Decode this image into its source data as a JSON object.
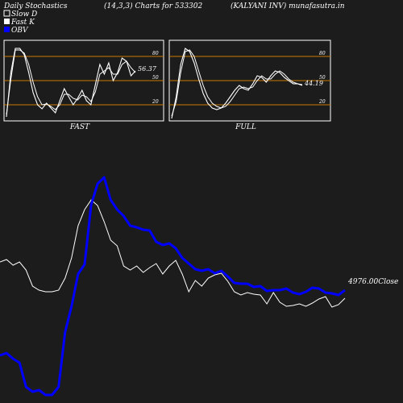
{
  "header": {
    "title_left": "Daily Stochastics",
    "title_mid": "(14,3,3) Charts for 533302",
    "title_right": "(KALYANI INV) munafasutra.in"
  },
  "legend": [
    {
      "label": "Slow  D",
      "color": "#ffffff"
    },
    {
      "label": "Fast K",
      "color": "#ffffff"
    },
    {
      "label": "OBV",
      "color": "#0000ff"
    }
  ],
  "colors": {
    "background": "#1c1c1c",
    "panel_border": "#ffffff",
    "level_line": "#cc7a00",
    "obv": "#0000ff",
    "price": "#ffffff"
  },
  "chart_data": [
    {
      "type": "line",
      "title": "FAST",
      "ylim": [
        0,
        100
      ],
      "levels": [
        20,
        50,
        80
      ],
      "tick_labels": [
        "80",
        "50",
        "20"
      ],
      "value_label": "56.37",
      "series": [
        {
          "name": "Fast K",
          "values": [
            5,
            60,
            90,
            90,
            82,
            60,
            35,
            20,
            15,
            22,
            16,
            10,
            25,
            40,
            30,
            20,
            28,
            38,
            25,
            20,
            45,
            70,
            58,
            72,
            50,
            60,
            78,
            74,
            56,
            62
          ]
        },
        {
          "name": "Slow  D",
          "values": [
            8,
            52,
            88,
            88,
            84,
            70,
            48,
            30,
            20,
            21,
            18,
            14,
            20,
            33,
            33,
            28,
            26,
            32,
            30,
            24,
            36,
            58,
            62,
            66,
            58,
            58,
            70,
            74,
            66,
            60
          ]
        }
      ]
    },
    {
      "type": "line",
      "title": "FULL",
      "ylim": [
        0,
        100
      ],
      "levels": [
        20,
        50,
        80
      ],
      "tick_labels": [
        "80",
        "50",
        "20"
      ],
      "value_label": "44.19",
      "series": [
        {
          "name": "Fast K",
          "values": [
            3,
            30,
            70,
            90,
            86,
            72,
            52,
            34,
            22,
            16,
            14,
            16,
            22,
            30,
            38,
            44,
            40,
            38,
            46,
            56,
            54,
            48,
            56,
            62,
            60,
            54,
            50,
            46,
            46,
            44
          ]
        },
        {
          "name": "Slow  D",
          "values": [
            6,
            24,
            60,
            86,
            88,
            80,
            62,
            44,
            30,
            22,
            18,
            16,
            18,
            24,
            32,
            40,
            42,
            40,
            42,
            50,
            56,
            52,
            52,
            58,
            62,
            58,
            52,
            48,
            46,
            45
          ]
        }
      ]
    },
    {
      "type": "line",
      "title": "",
      "close_label": "4976.00Close",
      "series": [
        {
          "name": "OBV",
          "values": [
            9,
            12,
            5,
            0,
            -30,
            -36,
            -34,
            -40,
            -40,
            -30,
            38,
            70,
            110,
            122,
            196,
            222,
            230,
            202,
            190,
            182,
            170,
            168,
            165,
            164,
            150,
            146,
            148,
            142,
            130,
            123,
            116,
            114,
            116,
            111,
            114,
            107,
            99,
            98,
            98,
            94,
            95,
            89,
            90,
            90,
            92,
            87,
            85,
            88,
            93,
            92,
            87,
            86,
            84,
            90
          ]
        },
        {
          "name": "Price",
          "values": [
            155,
            158,
            151,
            155,
            145,
            125,
            120,
            118,
            118,
            120,
            135,
            160,
            200,
            220,
            232,
            225,
            205,
            182,
            175,
            150,
            145,
            150,
            142,
            148,
            153,
            140,
            150,
            157,
            140,
            118,
            132,
            125,
            135,
            139,
            141,
            131,
            118,
            114,
            117,
            115,
            114,
            103,
            117,
            105,
            100,
            101,
            103,
            100,
            104,
            109,
            112,
            99,
            102,
            110
          ]
        }
      ]
    }
  ]
}
